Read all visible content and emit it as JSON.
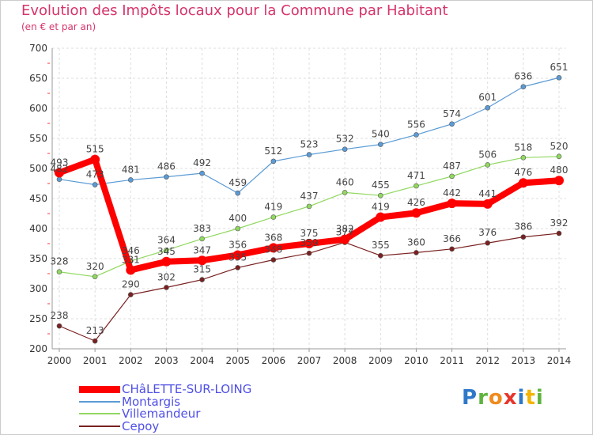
{
  "chart_data": {
    "type": "line",
    "title": "Evolution des Impôts locaux pour la Commune par Habitant",
    "subtitle": "(en € et par an)",
    "x": [
      "2000",
      "2001",
      "2002",
      "2003",
      "2004",
      "2005",
      "2006",
      "2007",
      "2008",
      "2009",
      "2010",
      "2011",
      "2012",
      "2013",
      "2014"
    ],
    "ylim": [
      200,
      700
    ],
    "yticks": [
      200,
      250,
      300,
      350,
      400,
      450,
      500,
      550,
      600,
      650,
      700
    ],
    "grid": true,
    "legend_position": "bottom-left",
    "series": [
      {
        "name": "CHâLETTE-SUR-LOING",
        "color": "#ff0000",
        "values": [
          493,
          515,
          331,
          345,
          347,
          356,
          368,
          375,
          382,
          419,
          426,
          442,
          441,
          476,
          480
        ]
      },
      {
        "name": "Montargis",
        "color": "#5b9bd5",
        "values": [
          482,
          473,
          481,
          486,
          492,
          459,
          512,
          523,
          532,
          540,
          556,
          574,
          601,
          636,
          651
        ]
      },
      {
        "name": "Villemandeur",
        "color": "#90d860",
        "values": [
          328,
          320,
          346,
          364,
          383,
          400,
          419,
          437,
          460,
          455,
          471,
          487,
          506,
          518,
          520
        ]
      },
      {
        "name": "Cepoy",
        "color": "#7a2020",
        "values": [
          238,
          213,
          290,
          302,
          315,
          335,
          348,
          359,
          377,
          355,
          360,
          366,
          376,
          386,
          392
        ]
      }
    ]
  },
  "logo": {
    "p": "P",
    "r": "r",
    "o": "o",
    "x": "x",
    "i1": "i",
    "t": "t",
    "i2": "i"
  }
}
